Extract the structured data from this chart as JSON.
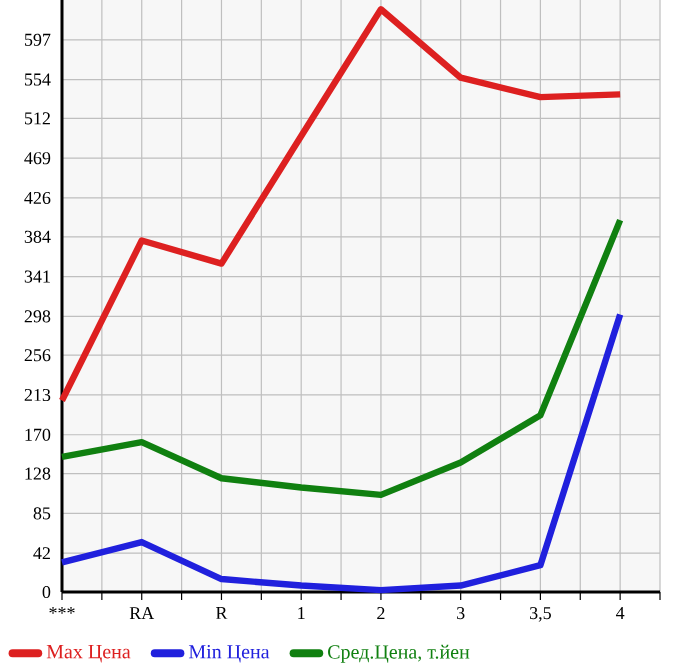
{
  "chart_data": {
    "type": "line",
    "categories": [
      "***",
      "RA",
      "R",
      "1",
      "2",
      "3",
      "3,5",
      "4"
    ],
    "series": [
      {
        "name": "Max Цена",
        "color": "#dd2020",
        "values": [
          207,
          380,
          355,
          493,
          630,
          556,
          535,
          538
        ]
      },
      {
        "name": "Min Цена",
        "color": "#2020dd",
        "values": [
          32,
          54,
          14,
          7,
          2,
          7,
          29,
          300
        ]
      },
      {
        "name": "Сред.Цена, т.йен",
        "color": "#108010",
        "values": [
          146,
          162,
          123,
          113,
          105,
          140,
          191,
          402
        ]
      }
    ],
    "ylim": [
      0,
      640
    ],
    "yticks": [
      0,
      42,
      85,
      128,
      170,
      213,
      256,
      298,
      341,
      384,
      426,
      469,
      512,
      554,
      597
    ],
    "grid": true,
    "legend": "bottom",
    "marker": "none",
    "line_style": "solid"
  }
}
